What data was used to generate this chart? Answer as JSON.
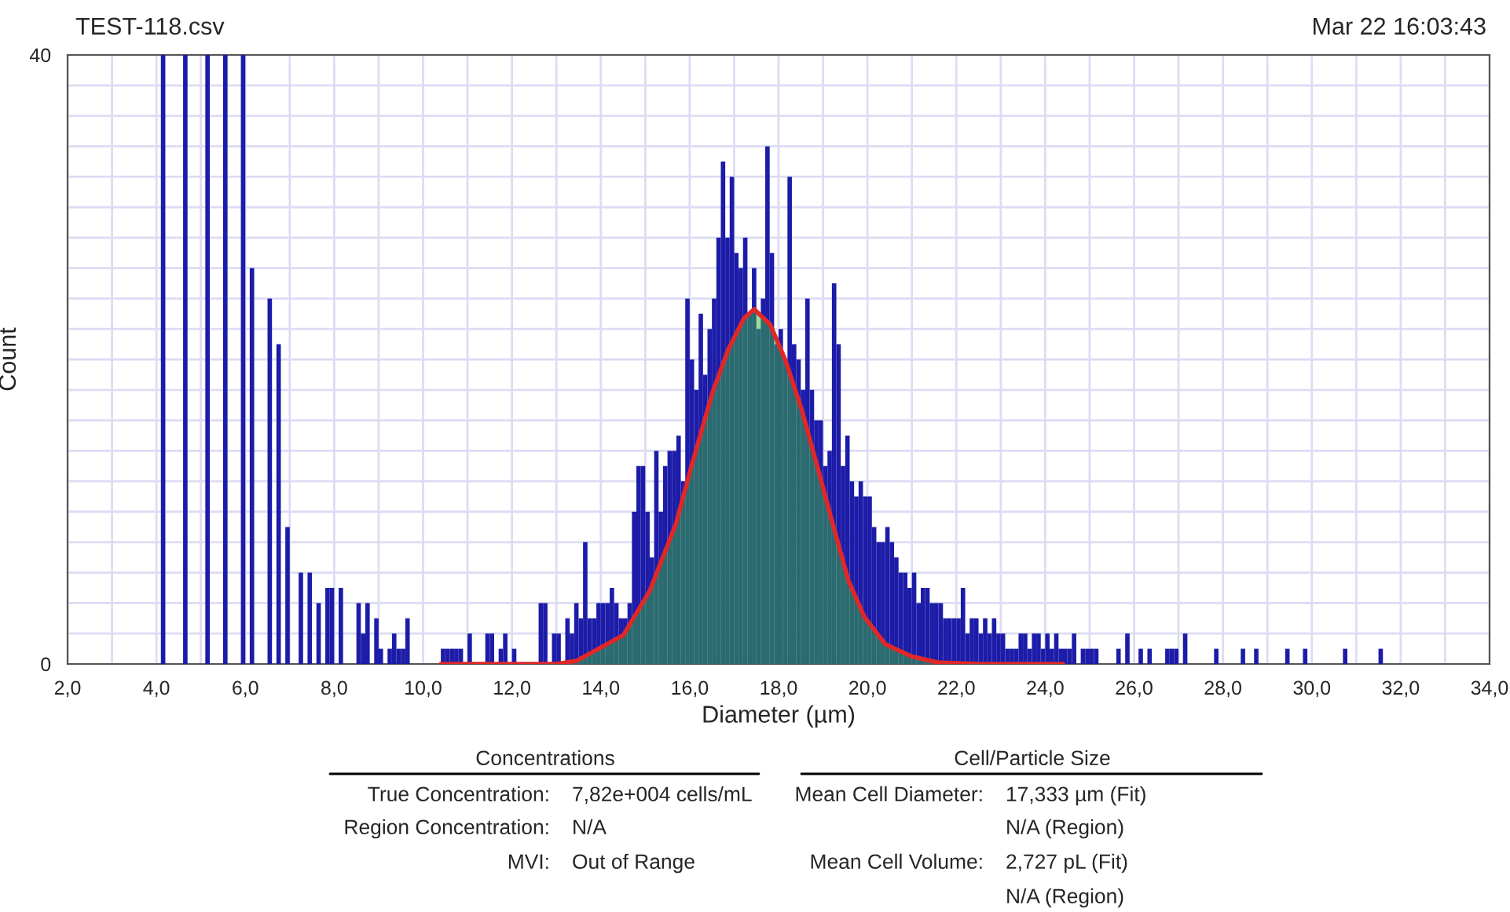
{
  "chart_data": {
    "type": "histogram",
    "title": "TEST-118.csv",
    "subtitle": "Mar 22 16:03:43",
    "xlabel": "Diameter (µm)",
    "ylabel": "Count",
    "xlim": [
      2,
      34
    ],
    "ylim": [
      0,
      40
    ],
    "xticks": [
      {
        "value": 2,
        "label": "2,0"
      },
      {
        "value": 3,
        "label": null
      },
      {
        "value": 4,
        "label": "4,0"
      },
      {
        "value": 5,
        "label": null
      },
      {
        "value": 6,
        "label": "6,0"
      },
      {
        "value": 7,
        "label": null
      },
      {
        "value": 8,
        "label": "8,0"
      },
      {
        "value": 9,
        "label": null
      },
      {
        "value": 10,
        "label": "10,0"
      },
      {
        "value": 11,
        "label": null
      },
      {
        "value": 12,
        "label": "12,0"
      },
      {
        "value": 13,
        "label": null
      },
      {
        "value": 14,
        "label": "14,0"
      },
      {
        "value": 15,
        "label": null
      },
      {
        "value": 16,
        "label": "16,0"
      },
      {
        "value": 17,
        "label": null
      },
      {
        "value": 18,
        "label": "18,0"
      },
      {
        "value": 19,
        "label": null
      },
      {
        "value": 20,
        "label": "20,0"
      },
      {
        "value": 21,
        "label": null
      },
      {
        "value": 22,
        "label": "22,0"
      },
      {
        "value": 23,
        "label": null
      },
      {
        "value": 24,
        "label": "24,0"
      },
      {
        "value": 25,
        "label": null
      },
      {
        "value": 26,
        "label": "26,0"
      },
      {
        "value": 27,
        "label": null
      },
      {
        "value": 28,
        "label": "28,0"
      },
      {
        "value": 29,
        "label": null
      },
      {
        "value": 30,
        "label": "30,0"
      },
      {
        "value": 31,
        "label": null
      },
      {
        "value": 32,
        "label": "32,0"
      },
      {
        "value": 33,
        "label": null
      },
      {
        "value": 34,
        "label": "34,0"
      }
    ],
    "yticks": [
      0,
      {
        "value": 2,
        "label": null
      },
      {
        "value": 4,
        "label": null
      },
      {
        "value": 6,
        "label": null
      },
      {
        "value": 8,
        "label": null
      },
      {
        "value": 10,
        "label": null
      },
      {
        "value": 12,
        "label": null
      },
      {
        "value": 14,
        "label": null
      },
      {
        "value": 16,
        "label": null
      },
      {
        "value": 18,
        "label": null
      },
      {
        "value": 20,
        "label": null
      },
      {
        "value": 22,
        "label": null
      },
      {
        "value": 24,
        "label": null
      },
      {
        "value": 26,
        "label": null
      },
      {
        "value": 28,
        "label": null
      },
      {
        "value": 30,
        "label": null
      },
      {
        "value": 32,
        "label": null
      },
      {
        "value": 34,
        "label": null
      },
      {
        "value": 36,
        "label": null
      },
      {
        "value": 38,
        "label": null
      },
      40
    ],
    "grid": true,
    "series": [
      {
        "color": "#1c1ca8",
        "bins": [
          4.0,
          4.1,
          4.2,
          4.3,
          4.4,
          4.5,
          4.6,
          4.7,
          4.8,
          4.9,
          5.0,
          5.1,
          5.2,
          5.3,
          5.4,
          5.5,
          5.6,
          5.7,
          5.8,
          5.9,
          6.0,
          6.1,
          6.2,
          6.3,
          6.4,
          6.5,
          6.6,
          6.7,
          6.8,
          6.9,
          7.0,
          7.1,
          7.2,
          7.3,
          7.4,
          7.5,
          7.6,
          7.7,
          7.8,
          7.9,
          8.0,
          8.1,
          8.2,
          8.3,
          8.4,
          8.5,
          8.6,
          8.7,
          8.8,
          8.9,
          9.0,
          9.1,
          9.2,
          9.3,
          9.4,
          9.5,
          9.6,
          9.7,
          9.8,
          9.9,
          10.0,
          10.1,
          10.2,
          10.3,
          10.4,
          10.5,
          10.6,
          10.7,
          10.8,
          10.9,
          11.0,
          11.1,
          11.2,
          11.3,
          11.4,
          11.5,
          11.6,
          11.7,
          11.8,
          11.9,
          12.0,
          12.1,
          12.2,
          12.3,
          12.4,
          12.5,
          12.6,
          12.7,
          12.8,
          12.9,
          13.0,
          13.1,
          13.2,
          13.3,
          13.4,
          13.5,
          13.6,
          13.7,
          13.8,
          13.9,
          14.0,
          14.1,
          14.2,
          14.3,
          14.4,
          14.5,
          14.6,
          14.7,
          14.8,
          14.9,
          15.0,
          15.1,
          15.2,
          15.3,
          15.4,
          15.5,
          15.6,
          15.7,
          15.8,
          15.9,
          16.0,
          16.1,
          16.2,
          16.3,
          16.4,
          16.5,
          16.6,
          16.7,
          16.8,
          16.9,
          17.0,
          17.1,
          17.2,
          17.3,
          17.4,
          17.5,
          17.6,
          17.7,
          17.8,
          17.9,
          18.0,
          18.1,
          18.2,
          18.3,
          18.4,
          18.5,
          18.6,
          18.7,
          18.8,
          18.9,
          19.0,
          19.1,
          19.2,
          19.3,
          19.4,
          19.5,
          19.6,
          19.7,
          19.8,
          19.9,
          20.0,
          20.1,
          20.2,
          20.3,
          20.4,
          20.5,
          20.6,
          20.7,
          20.8,
          20.9,
          21.0,
          21.1,
          21.2,
          21.3,
          21.4,
          21.5,
          21.6,
          21.7,
          21.8,
          21.9,
          22.0,
          22.1,
          22.2,
          22.3,
          22.4,
          22.5,
          22.6,
          22.7,
          22.8,
          22.9,
          23.0,
          23.1,
          23.2,
          23.3,
          23.4,
          23.5,
          23.6,
          23.7,
          23.8,
          23.9,
          24.0,
          24.1,
          24.2,
          24.3,
          24.4,
          24.5,
          24.6,
          24.7,
          24.8,
          24.9,
          25.0,
          25.1,
          25.2,
          25.3,
          25.4,
          25.5,
          25.6,
          25.7,
          25.8,
          25.9,
          26.0,
          26.1,
          26.2,
          26.3,
          26.4,
          26.5,
          26.6,
          26.7,
          26.8,
          26.9,
          27.0,
          27.1,
          27.2,
          27.3,
          27.4,
          27.5,
          27.6,
          27.7,
          27.8,
          27.9,
          28.0,
          28.1,
          28.2,
          28.3,
          28.4,
          28.5,
          28.6,
          28.7,
          28.8,
          28.9,
          29.0,
          29.1,
          29.2,
          29.3,
          29.4,
          29.5,
          29.6,
          29.7,
          29.8,
          29.9,
          30.0,
          30.1,
          30.2,
          30.3,
          30.4,
          30.5,
          30.6,
          30.7,
          30.8,
          30.9,
          31.0,
          31.1,
          31.2,
          31.3,
          31.4,
          31.5,
          31.6,
          31.7
        ],
        "values": [
          0,
          40,
          0,
          0,
          0,
          0,
          40,
          0,
          0,
          0,
          0,
          40,
          0,
          0,
          0,
          40,
          0,
          0,
          0,
          40,
          0,
          26,
          0,
          0,
          0,
          24,
          0,
          21,
          0,
          9,
          0,
          0,
          6,
          0,
          6,
          0,
          4,
          0,
          5,
          5,
          0,
          5,
          0,
          0,
          0,
          4,
          2,
          4,
          0,
          3,
          1,
          0,
          1,
          2,
          1,
          1,
          3,
          0,
          0,
          0,
          0,
          0,
          0,
          0,
          1,
          1,
          1,
          1,
          1,
          0,
          2,
          0,
          0,
          0,
          2,
          2,
          0,
          1,
          2,
          0,
          1,
          0,
          0,
          0,
          0,
          0,
          4,
          4,
          0,
          2,
          2,
          0,
          3,
          2,
          4,
          3,
          8,
          3,
          3,
          4,
          4,
          4,
          5,
          4,
          3,
          3,
          4,
          10,
          13,
          13,
          10,
          7,
          14,
          10,
          13,
          14,
          14,
          15,
          12,
          24,
          20,
          18,
          23,
          19,
          22,
          24,
          28,
          33,
          28,
          32,
          27,
          26,
          28,
          23,
          26,
          22,
          24,
          34,
          27,
          21,
          22,
          20,
          32,
          21,
          20,
          18,
          24,
          18,
          16,
          16,
          13,
          14,
          25,
          21,
          13,
          15,
          12,
          11,
          12,
          11,
          11,
          9,
          8,
          8,
          9,
          8,
          7,
          6,
          6,
          5,
          6,
          4,
          5,
          5,
          4,
          4,
          4,
          3,
          3,
          3,
          3,
          5,
          2,
          3,
          3,
          2,
          3,
          2,
          3,
          2,
          2,
          1,
          1,
          1,
          2,
          2,
          1,
          2,
          2,
          1,
          2,
          1,
          2,
          1,
          1,
          1,
          2,
          0,
          1,
          1,
          1,
          1,
          0,
          0,
          0,
          0,
          1,
          0,
          2,
          0,
          0,
          1,
          0,
          1,
          0,
          0,
          0,
          1,
          1,
          1,
          0,
          2,
          0,
          0,
          0,
          0,
          0,
          0,
          1,
          0,
          0,
          0,
          0,
          0,
          1,
          0,
          0,
          1,
          0,
          0,
          0,
          0,
          0,
          0,
          1,
          0,
          0,
          0,
          1,
          0,
          0,
          0,
          0,
          0,
          0,
          0,
          0,
          1,
          0,
          0,
          0,
          0,
          0,
          0,
          0,
          1,
          0
        ]
      },
      {
        "type": "line",
        "color": "#e02828",
        "lower": [
          0,
          0,
          0,
          0,
          0,
          0,
          0,
          0,
          0,
          0,
          0,
          0,
          0,
          0,
          0,
          0,
          0,
          0,
          0,
          0,
          0,
          0,
          0,
          0
        ],
        "upper": [
          0,
          0,
          0,
          0.2,
          1.9,
          4.8,
          9.2,
          13.0,
          17.8,
          20.6,
          22.7,
          23.3,
          22.3,
          19.9,
          16.8,
          13.0,
          9.2,
          5.5,
          3.1,
          1.3,
          0.5,
          0.1,
          0,
          0
        ],
        "x": [
          10.4,
          12.0,
          13.0,
          13.45,
          14.51,
          15.1,
          15.69,
          16.04,
          16.51,
          16.86,
          17.22,
          17.45,
          17.81,
          18.16,
          18.51,
          18.87,
          19.22,
          19.57,
          19.93,
          20.4,
          20.99,
          21.58,
          22.5,
          24.4
        ],
        "values": [
          0,
          0,
          0,
          0.2,
          1.9,
          4.8,
          9.2,
          13.0,
          17.8,
          20.6,
          22.7,
          23.3,
          22.3,
          19.9,
          16.8,
          13.0,
          9.2,
          5.5,
          3.1,
          1.3,
          0.5,
          0.1,
          0,
          0
        ]
      }
    ],
    "annotations": [
      "Concentrations",
      "Cell/Particle Size",
      "True Concentration:",
      "7,82e+004 cells/mL",
      "Region Concentration:",
      "N/A",
      "MVI:",
      "Out of Range",
      "Mean Cell Diameter:",
      "17,333 µm (Fit)",
      "N/A (Region)",
      "Mean Cell Volume:",
      "2,727 pL (Fit)",
      "N/A (Region)"
    ]
  }
}
